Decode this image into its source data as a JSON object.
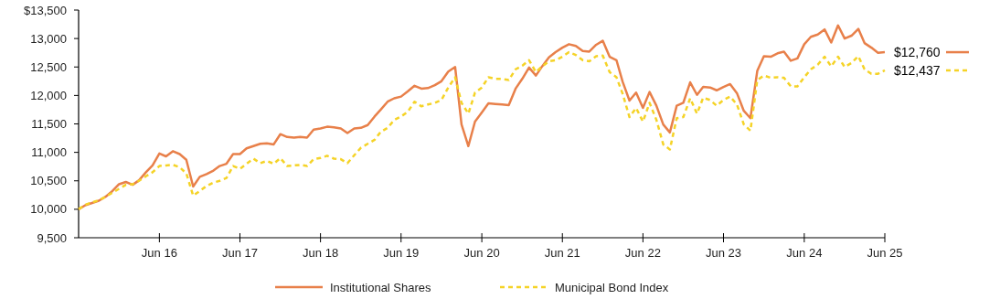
{
  "chart_data": {
    "type": "line",
    "x": [
      "2015-06",
      "2015-07",
      "2015-08",
      "2015-09",
      "2015-10",
      "2015-11",
      "2015-12",
      "2016-01",
      "2016-02",
      "2016-03",
      "2016-04",
      "2016-05",
      "2016-06",
      "2016-07",
      "2016-08",
      "2016-09",
      "2016-10",
      "2016-11",
      "2016-12",
      "2017-01",
      "2017-02",
      "2017-03",
      "2017-04",
      "2017-05",
      "2017-06",
      "2017-07",
      "2017-08",
      "2017-09",
      "2017-10",
      "2017-11",
      "2017-12",
      "2018-01",
      "2018-02",
      "2018-03",
      "2018-04",
      "2018-05",
      "2018-06",
      "2018-07",
      "2018-08",
      "2018-09",
      "2018-10",
      "2018-11",
      "2018-12",
      "2019-01",
      "2019-02",
      "2019-03",
      "2019-04",
      "2019-05",
      "2019-06",
      "2019-07",
      "2019-08",
      "2019-09",
      "2019-10",
      "2019-11",
      "2019-12",
      "2020-01",
      "2020-02",
      "2020-03",
      "2020-04",
      "2020-05",
      "2020-06",
      "2020-07",
      "2020-08",
      "2020-09",
      "2020-10",
      "2020-11",
      "2020-12",
      "2021-01",
      "2021-02",
      "2021-03",
      "2021-04",
      "2021-05",
      "2021-06",
      "2021-07",
      "2021-08",
      "2021-09",
      "2021-10",
      "2021-11",
      "2021-12",
      "2022-01",
      "2022-02",
      "2022-03",
      "2022-04",
      "2022-05",
      "2022-06",
      "2022-07",
      "2022-08",
      "2022-09",
      "2022-10",
      "2022-11",
      "2022-12",
      "2023-01",
      "2023-02",
      "2023-03",
      "2023-04",
      "2023-05",
      "2023-06",
      "2023-07",
      "2023-08",
      "2023-09",
      "2023-10",
      "2023-11",
      "2023-12",
      "2024-01",
      "2024-02",
      "2024-03",
      "2024-04",
      "2024-05",
      "2024-06",
      "2024-07",
      "2024-08",
      "2024-09",
      "2024-10",
      "2024-11",
      "2024-12",
      "2025-01",
      "2025-02",
      "2025-03",
      "2025-04",
      "2025-05",
      "2025-06"
    ],
    "series": [
      {
        "name": "Institutional Shares",
        "color": "#e8804a",
        "line_style": "solid",
        "values": [
          10000,
          10070,
          10110,
          10150,
          10220,
          10320,
          10440,
          10480,
          10430,
          10510,
          10650,
          10770,
          10980,
          10930,
          11020,
          10970,
          10870,
          10400,
          10570,
          10620,
          10680,
          10760,
          10800,
          10970,
          10970,
          11070,
          11110,
          11150,
          11160,
          11140,
          11320,
          11270,
          11260,
          11270,
          11260,
          11400,
          11420,
          11450,
          11440,
          11420,
          11340,
          11420,
          11430,
          11480,
          11630,
          11750,
          11890,
          11950,
          11980,
          12070,
          12170,
          12120,
          12130,
          12180,
          12250,
          12420,
          12500,
          11490,
          11110,
          11540,
          11700,
          11860,
          11850,
          11840,
          11830,
          12120,
          12290,
          12490,
          12350,
          12510,
          12670,
          12760,
          12840,
          12900,
          12870,
          12780,
          12770,
          12890,
          12960,
          12680,
          12620,
          12240,
          11910,
          12050,
          11780,
          12060,
          11820,
          11490,
          11350,
          11820,
          11870,
          12230,
          12010,
          12150,
          12140,
          12090,
          12150,
          12200,
          12040,
          11730,
          11600,
          12430,
          12690,
          12680,
          12740,
          12770,
          12610,
          12650,
          12900,
          13030,
          13070,
          13160,
          12930,
          13230,
          13000,
          13050,
          13170,
          12920,
          12840,
          12750,
          12760
        ]
      },
      {
        "name": "Municipal Bond Index",
        "color": "#f5d327",
        "line_style": "dashed",
        "values": [
          10000,
          10080,
          10120,
          10160,
          10220,
          10290,
          10360,
          10430,
          10440,
          10500,
          10580,
          10650,
          10760,
          10770,
          10780,
          10740,
          10630,
          10240,
          10320,
          10410,
          10470,
          10500,
          10550,
          10760,
          10710,
          10800,
          10890,
          10810,
          10850,
          10800,
          10900,
          10760,
          10770,
          10780,
          10760,
          10880,
          10900,
          10940,
          10890,
          10880,
          10810,
          10950,
          11080,
          11150,
          11220,
          11360,
          11430,
          11570,
          11630,
          11710,
          11890,
          11810,
          11840,
          11870,
          11920,
          12140,
          12320,
          11870,
          11680,
          12050,
          12140,
          12320,
          12290,
          12290,
          12270,
          12460,
          12520,
          12620,
          12410,
          12510,
          12600,
          12620,
          12680,
          12760,
          12710,
          12620,
          12600,
          12690,
          12700,
          12410,
          12320,
          12030,
          11620,
          11780,
          11540,
          11870,
          11570,
          11140,
          11050,
          11600,
          11620,
          11950,
          11680,
          11960,
          11920,
          11820,
          11920,
          11980,
          11840,
          11490,
          11380,
          12270,
          12350,
          12310,
          12320,
          12310,
          12160,
          12160,
          12320,
          12460,
          12540,
          12680,
          12510,
          12680,
          12500,
          12570,
          12690,
          12460,
          12380,
          12380,
          12440
        ]
      }
    ],
    "xlim": [
      "2015-06",
      "2025-06"
    ],
    "xticks": [
      {
        "value": "2016-06",
        "label": "Jun 16"
      },
      {
        "value": "2017-06",
        "label": "Jun 17"
      },
      {
        "value": "2018-06",
        "label": "Jun 18"
      },
      {
        "value": "2019-06",
        "label": "Jun 19"
      },
      {
        "value": "2020-06",
        "label": "Jun 20"
      },
      {
        "value": "2021-06",
        "label": "Jun 21"
      },
      {
        "value": "2022-06",
        "label": "Jun 22"
      },
      {
        "value": "2023-06",
        "label": "Jun 23"
      },
      {
        "value": "2024-06",
        "label": "Jun 24"
      },
      {
        "value": "2025-06",
        "label": "Jun 25"
      }
    ],
    "ylim": [
      9500,
      13500
    ],
    "yticks": [
      {
        "value": 9500,
        "label": "9,500"
      },
      {
        "value": 10000,
        "label": "10,000"
      },
      {
        "value": 10500,
        "label": "10,500"
      },
      {
        "value": 11000,
        "label": "11,000"
      },
      {
        "value": 11500,
        "label": "11,500"
      },
      {
        "value": 12000,
        "label": "12,000"
      },
      {
        "value": 12500,
        "label": "12,500"
      },
      {
        "value": 13000,
        "label": "13,000"
      },
      {
        "value": 13500,
        "label": "$13,500"
      }
    ],
    "annotations": [
      "$12,760",
      "$12,437"
    ],
    "legend": "bottom",
    "marker": "none",
    "grid": false
  }
}
